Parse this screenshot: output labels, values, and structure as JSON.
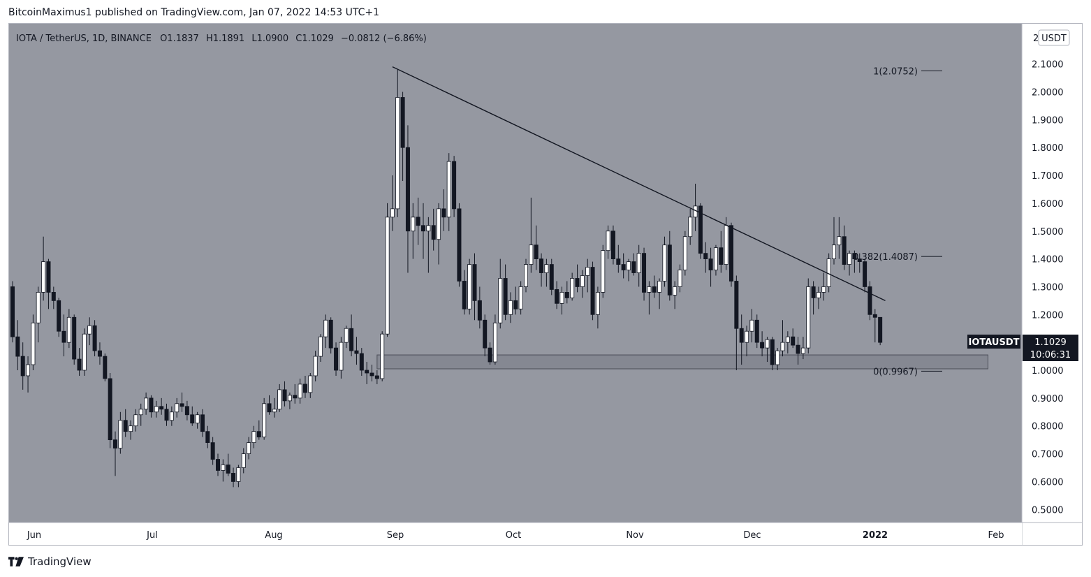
{
  "header": {
    "publisher_text": "BitcoinMaximus1 published on TradingView.com, Jan 07, 2022 14:53 UTC+1"
  },
  "legend": {
    "symbol": "IOTA / TetherUS, 1D, BINANCE",
    "o_label": "O",
    "o_value": "1.1837",
    "h_label": "H",
    "h_value": "1.1891",
    "l_label": "L",
    "l_value": "1.0900",
    "c_label": "C",
    "c_value": "1.1029",
    "change": "−0.0812 (−6.86%)"
  },
  "price_axis": {
    "currency_box": "USDT",
    "currency_prefix": "2",
    "ticks": [
      "2.1000",
      "2.0000",
      "1.9000",
      "1.8000",
      "1.7000",
      "1.6000",
      "1.5000",
      "1.4000",
      "1.3000",
      "1.2000",
      "1.1000",
      "1.0000",
      "0.9000",
      "0.8000",
      "0.7000",
      "0.6000",
      "0.5000"
    ],
    "last_price": "1.1029",
    "countdown": "10:06:31",
    "ticker_label": "IOTAUSDT"
  },
  "time_axis": {
    "labels": [
      "Jun",
      "Jul",
      "Aug",
      "Sep",
      "Oct",
      "Nov",
      "Dec",
      "2022",
      "Feb"
    ]
  },
  "fib": {
    "level1": "1(2.0752)",
    "level_mid": "0.382(1.4087)",
    "level0": "0(0.9967)"
  },
  "colors": {
    "pane_bg": "#9598a1",
    "up_candle": "#ffffff",
    "down_candle": "#131722",
    "trendline": "#131722",
    "support_zone": "#787b86",
    "axis_bg": "#ffffff",
    "last_price_bg": "#131722"
  },
  "footer": {
    "brand": "TradingView",
    "brand_icon": "tradingview-logo-icon"
  },
  "chart_data": {
    "type": "candlestick",
    "timeframe": "1D",
    "ylim": [
      0.45,
      2.2
    ],
    "x_axis_months": [
      "Jun",
      "Jul",
      "Aug",
      "Sep",
      "Oct",
      "Nov",
      "Dec",
      "2022",
      "Feb"
    ],
    "candles": [
      [
        1.3,
        1.32,
        1.1,
        1.12
      ],
      [
        1.12,
        1.18,
        1.0,
        1.05
      ],
      [
        1.05,
        1.1,
        0.93,
        0.98
      ],
      [
        0.98,
        1.05,
        0.92,
        1.02
      ],
      [
        1.02,
        1.2,
        1.0,
        1.17
      ],
      [
        1.17,
        1.3,
        1.1,
        1.28
      ],
      [
        1.28,
        1.48,
        1.25,
        1.39
      ],
      [
        1.39,
        1.4,
        1.22,
        1.28
      ],
      [
        1.28,
        1.3,
        1.22,
        1.25
      ],
      [
        1.25,
        1.26,
        1.12,
        1.14
      ],
      [
        1.14,
        1.2,
        1.05,
        1.1
      ],
      [
        1.1,
        1.22,
        1.08,
        1.19
      ],
      [
        1.19,
        1.2,
        1.02,
        1.04
      ],
      [
        1.04,
        1.08,
        0.98,
        1.0
      ],
      [
        1.0,
        1.15,
        0.98,
        1.13
      ],
      [
        1.13,
        1.19,
        1.09,
        1.16
      ],
      [
        1.16,
        1.18,
        1.05,
        1.07
      ],
      [
        1.07,
        1.1,
        1.02,
        1.05
      ],
      [
        1.05,
        1.06,
        0.96,
        0.97
      ],
      [
        0.97,
        0.99,
        0.72,
        0.75
      ],
      [
        0.75,
        0.78,
        0.62,
        0.72
      ],
      [
        0.72,
        0.85,
        0.7,
        0.82
      ],
      [
        0.82,
        0.86,
        0.76,
        0.78
      ],
      [
        0.78,
        0.82,
        0.75,
        0.8
      ],
      [
        0.8,
        0.86,
        0.78,
        0.84
      ],
      [
        0.84,
        0.88,
        0.8,
        0.86
      ],
      [
        0.86,
        0.92,
        0.84,
        0.9
      ],
      [
        0.9,
        0.91,
        0.83,
        0.85
      ],
      [
        0.85,
        0.89,
        0.83,
        0.87
      ],
      [
        0.87,
        0.9,
        0.84,
        0.86
      ],
      [
        0.86,
        0.88,
        0.8,
        0.82
      ],
      [
        0.82,
        0.87,
        0.8,
        0.85
      ],
      [
        0.85,
        0.9,
        0.83,
        0.88
      ],
      [
        0.88,
        0.92,
        0.85,
        0.87
      ],
      [
        0.87,
        0.89,
        0.82,
        0.84
      ],
      [
        0.84,
        0.87,
        0.8,
        0.81
      ],
      [
        0.81,
        0.85,
        0.79,
        0.84
      ],
      [
        0.84,
        0.86,
        0.76,
        0.78
      ],
      [
        0.78,
        0.8,
        0.72,
        0.74
      ],
      [
        0.74,
        0.76,
        0.66,
        0.68
      ],
      [
        0.68,
        0.7,
        0.62,
        0.64
      ],
      [
        0.64,
        0.68,
        0.6,
        0.66
      ],
      [
        0.66,
        0.7,
        0.62,
        0.63
      ],
      [
        0.63,
        0.65,
        0.58,
        0.6
      ],
      [
        0.6,
        0.66,
        0.58,
        0.65
      ],
      [
        0.65,
        0.72,
        0.63,
        0.7
      ],
      [
        0.7,
        0.76,
        0.68,
        0.74
      ],
      [
        0.74,
        0.8,
        0.72,
        0.78
      ],
      [
        0.78,
        0.82,
        0.75,
        0.76
      ],
      [
        0.76,
        0.9,
        0.75,
        0.88
      ],
      [
        0.88,
        0.91,
        0.84,
        0.85
      ],
      [
        0.85,
        0.9,
        0.83,
        0.86
      ],
      [
        0.86,
        0.95,
        0.85,
        0.93
      ],
      [
        0.93,
        0.96,
        0.87,
        0.89
      ],
      [
        0.89,
        0.92,
        0.86,
        0.91
      ],
      [
        0.91,
        0.95,
        0.88,
        0.9
      ],
      [
        0.9,
        0.97,
        0.88,
        0.95
      ],
      [
        0.95,
        0.98,
        0.9,
        0.92
      ],
      [
        0.92,
        0.99,
        0.9,
        0.98
      ],
      [
        0.98,
        1.07,
        0.96,
        1.05
      ],
      [
        1.05,
        1.13,
        1.03,
        1.12
      ],
      [
        1.12,
        1.2,
        1.08,
        1.18
      ],
      [
        1.18,
        1.19,
        1.06,
        1.08
      ],
      [
        1.08,
        1.1,
        0.98,
        1.0
      ],
      [
        1.0,
        1.12,
        0.97,
        1.1
      ],
      [
        1.1,
        1.16,
        1.08,
        1.15
      ],
      [
        1.15,
        1.2,
        1.05,
        1.07
      ],
      [
        1.07,
        1.12,
        1.02,
        1.06
      ],
      [
        1.06,
        1.08,
        0.98,
        1.0
      ],
      [
        1.0,
        1.03,
        0.95,
        0.99
      ],
      [
        0.99,
        1.02,
        0.96,
        0.98
      ],
      [
        0.98,
        1.0,
        0.95,
        0.97
      ],
      [
        0.97,
        1.14,
        0.96,
        1.13
      ],
      [
        1.13,
        1.6,
        1.12,
        1.55
      ],
      [
        1.55,
        1.7,
        1.5,
        1.58
      ],
      [
        1.58,
        2.08,
        1.55,
        1.98
      ],
      [
        1.98,
        2.0,
        1.68,
        1.8
      ],
      [
        1.8,
        1.88,
        1.35,
        1.5
      ],
      [
        1.5,
        1.6,
        1.4,
        1.55
      ],
      [
        1.55,
        1.62,
        1.45,
        1.52
      ],
      [
        1.52,
        1.6,
        1.4,
        1.5
      ],
      [
        1.5,
        1.55,
        1.35,
        1.52
      ],
      [
        1.52,
        1.58,
        1.43,
        1.47
      ],
      [
        1.47,
        1.6,
        1.38,
        1.58
      ],
      [
        1.58,
        1.65,
        1.5,
        1.55
      ],
      [
        1.55,
        1.78,
        1.5,
        1.75
      ],
      [
        1.75,
        1.77,
        1.55,
        1.58
      ],
      [
        1.58,
        1.6,
        1.3,
        1.32
      ],
      [
        1.32,
        1.36,
        1.2,
        1.22
      ],
      [
        1.22,
        1.4,
        1.2,
        1.38
      ],
      [
        1.38,
        1.42,
        1.18,
        1.25
      ],
      [
        1.25,
        1.3,
        1.15,
        1.18
      ],
      [
        1.18,
        1.2,
        1.05,
        1.08
      ],
      [
        1.08,
        1.1,
        1.02,
        1.03
      ],
      [
        1.03,
        1.2,
        1.02,
        1.17
      ],
      [
        1.17,
        1.4,
        1.15,
        1.33
      ],
      [
        1.33,
        1.38,
        1.18,
        1.2
      ],
      [
        1.2,
        1.28,
        1.17,
        1.25
      ],
      [
        1.25,
        1.3,
        1.2,
        1.22
      ],
      [
        1.22,
        1.32,
        1.2,
        1.3
      ],
      [
        1.3,
        1.4,
        1.28,
        1.38
      ],
      [
        1.38,
        1.62,
        1.35,
        1.45
      ],
      [
        1.45,
        1.52,
        1.36,
        1.4
      ],
      [
        1.4,
        1.42,
        1.3,
        1.35
      ],
      [
        1.35,
        1.4,
        1.3,
        1.38
      ],
      [
        1.38,
        1.4,
        1.27,
        1.29
      ],
      [
        1.29,
        1.32,
        1.22,
        1.24
      ],
      [
        1.24,
        1.3,
        1.2,
        1.28
      ],
      [
        1.28,
        1.32,
        1.24,
        1.26
      ],
      [
        1.26,
        1.35,
        1.25,
        1.33
      ],
      [
        1.33,
        1.38,
        1.28,
        1.3
      ],
      [
        1.3,
        1.36,
        1.26,
        1.34
      ],
      [
        1.34,
        1.4,
        1.28,
        1.37
      ],
      [
        1.37,
        1.39,
        1.18,
        1.2
      ],
      [
        1.2,
        1.3,
        1.15,
        1.28
      ],
      [
        1.28,
        1.45,
        1.26,
        1.43
      ],
      [
        1.43,
        1.52,
        1.4,
        1.5
      ],
      [
        1.5,
        1.52,
        1.38,
        1.4
      ],
      [
        1.4,
        1.45,
        1.35,
        1.38
      ],
      [
        1.38,
        1.42,
        1.33,
        1.36
      ],
      [
        1.36,
        1.4,
        1.32,
        1.39
      ],
      [
        1.39,
        1.42,
        1.34,
        1.35
      ],
      [
        1.35,
        1.45,
        1.3,
        1.42
      ],
      [
        1.42,
        1.44,
        1.25,
        1.28
      ],
      [
        1.28,
        1.32,
        1.2,
        1.3
      ],
      [
        1.3,
        1.34,
        1.26,
        1.28
      ],
      [
        1.28,
        1.33,
        1.22,
        1.32
      ],
      [
        1.32,
        1.48,
        1.3,
        1.45
      ],
      [
        1.45,
        1.5,
        1.25,
        1.27
      ],
      [
        1.27,
        1.32,
        1.22,
        1.3
      ],
      [
        1.3,
        1.38,
        1.28,
        1.36
      ],
      [
        1.36,
        1.5,
        1.34,
        1.48
      ],
      [
        1.48,
        1.58,
        1.45,
        1.55
      ],
      [
        1.55,
        1.67,
        1.5,
        1.59
      ],
      [
        1.59,
        1.6,
        1.4,
        1.42
      ],
      [
        1.42,
        1.46,
        1.35,
        1.4
      ],
      [
        1.4,
        1.44,
        1.3,
        1.36
      ],
      [
        1.36,
        1.45,
        1.34,
        1.44
      ],
      [
        1.44,
        1.5,
        1.35,
        1.38
      ],
      [
        1.38,
        1.55,
        1.36,
        1.52
      ],
      [
        1.52,
        1.53,
        1.3,
        1.32
      ],
      [
        1.32,
        1.34,
        1.0,
        1.15
      ],
      [
        1.15,
        1.2,
        1.02,
        1.1
      ],
      [
        1.1,
        1.16,
        1.05,
        1.14
      ],
      [
        1.14,
        1.22,
        1.1,
        1.18
      ],
      [
        1.18,
        1.2,
        1.08,
        1.1
      ],
      [
        1.1,
        1.14,
        1.05,
        1.08
      ],
      [
        1.08,
        1.12,
        1.03,
        1.11
      ],
      [
        1.11,
        1.12,
        1.0,
        1.02
      ],
      [
        1.02,
        1.08,
        1.0,
        1.07
      ],
      [
        1.07,
        1.18,
        1.05,
        1.1
      ],
      [
        1.1,
        1.14,
        1.06,
        1.12
      ],
      [
        1.12,
        1.15,
        1.08,
        1.09
      ],
      [
        1.09,
        1.12,
        1.02,
        1.06
      ],
      [
        1.06,
        1.12,
        1.04,
        1.08
      ],
      [
        1.08,
        1.33,
        1.06,
        1.3
      ],
      [
        1.3,
        1.32,
        1.2,
        1.26
      ],
      [
        1.26,
        1.3,
        1.22,
        1.28
      ],
      [
        1.28,
        1.35,
        1.25,
        1.3
      ],
      [
        1.3,
        1.42,
        1.28,
        1.4
      ],
      [
        1.4,
        1.55,
        1.38,
        1.45
      ],
      [
        1.45,
        1.55,
        1.4,
        1.48
      ],
      [
        1.48,
        1.52,
        1.36,
        1.38
      ],
      [
        1.38,
        1.43,
        1.34,
        1.42
      ],
      [
        1.42,
        1.43,
        1.35,
        1.4
      ],
      [
        1.4,
        1.42,
        1.35,
        1.39
      ],
      [
        1.39,
        1.4,
        1.28,
        1.3
      ],
      [
        1.3,
        1.32,
        1.18,
        1.2
      ],
      [
        1.2,
        1.22,
        1.1,
        1.19
      ],
      [
        1.19,
        1.19,
        1.09,
        1.1
      ]
    ],
    "annotations": {
      "trendline": {
        "start": [
          74,
          2.09
        ],
        "end": [
          170,
          1.25
        ]
      },
      "support_zone": {
        "start_index": 71,
        "end_index": 190,
        "low": 1.005,
        "high": 1.055
      },
      "fibonacci": [
        {
          "label": "1(2.0752)",
          "value": 2.0752
        },
        {
          "label": "0.382(1.4087)",
          "value": 1.4087
        },
        {
          "label": "0(0.9967)",
          "value": 0.9967
        }
      ]
    }
  }
}
